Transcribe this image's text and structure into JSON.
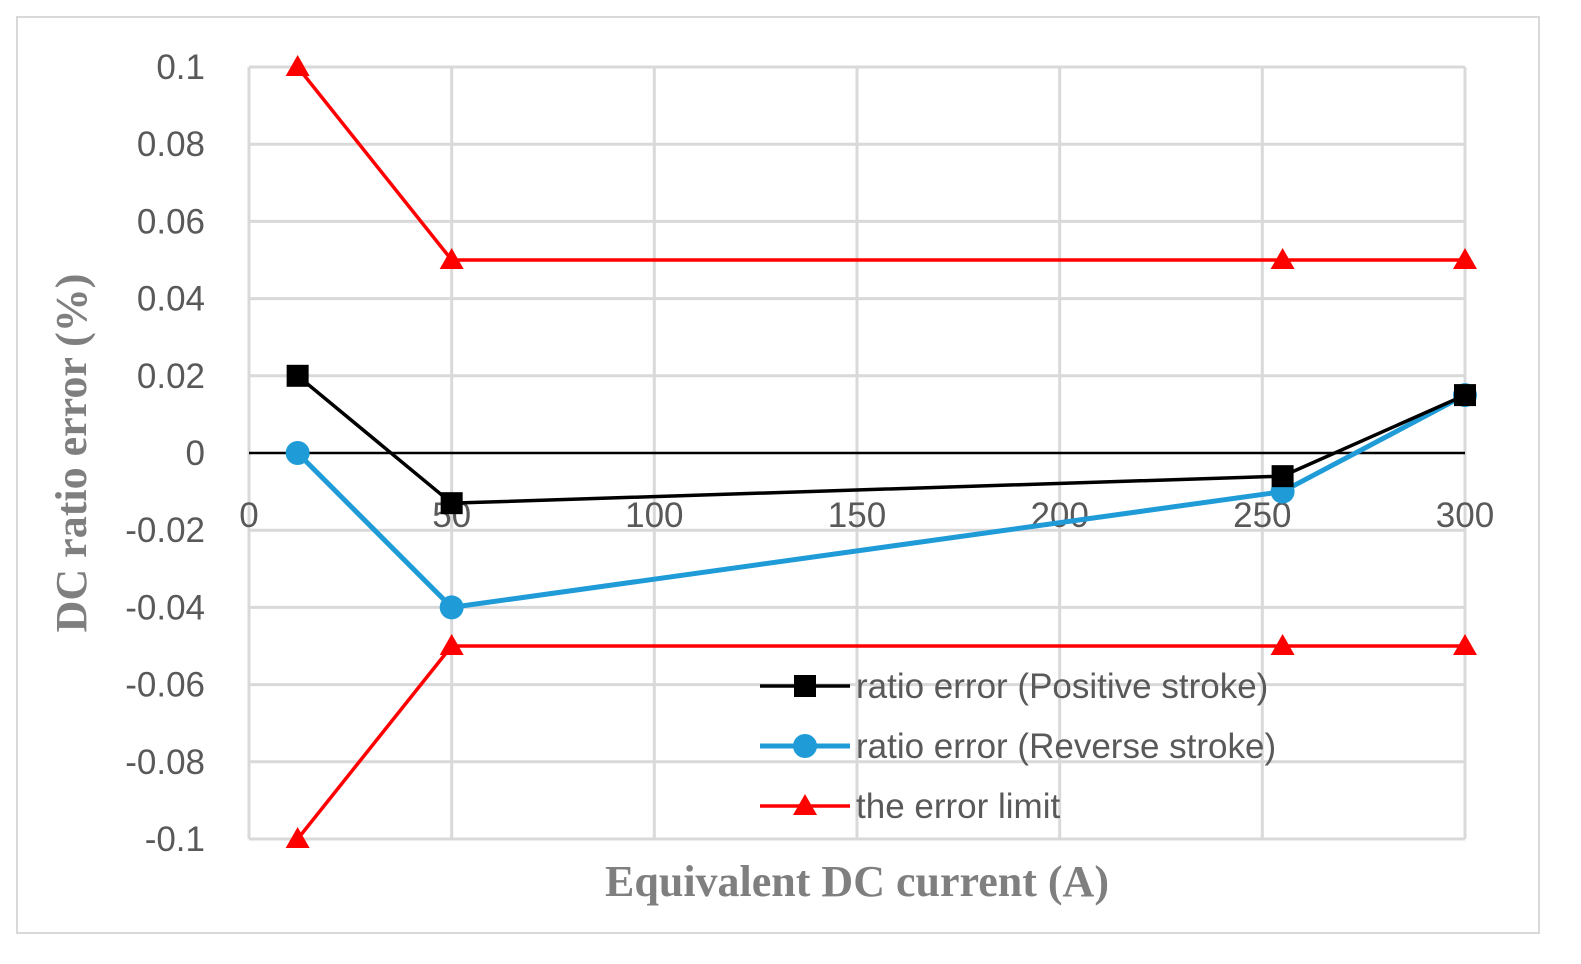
{
  "chart_data": {
    "type": "line",
    "title": "",
    "xlabel": "Equivalent DC current (A)",
    "ylabel": "DC ratio error (%)",
    "xlim": [
      0,
      300
    ],
    "ylim": [
      -0.1,
      0.1
    ],
    "x_ticks": [
      "0",
      "50",
      "100",
      "150",
      "200",
      "250",
      "300"
    ],
    "y_ticks": [
      "0.1",
      "0.08",
      "0.06",
      "0.04",
      "0.02",
      "0",
      "-0.02",
      "-0.04",
      "-0.06",
      "-0.08",
      "-0.1"
    ],
    "grid": true,
    "legend_position": "bottom-right",
    "series": [
      {
        "name": "ratio error (Positive stroke)",
        "color": "#000000",
        "marker": "square",
        "x": [
          12,
          50,
          255,
          300
        ],
        "y": [
          0.02,
          -0.013,
          -0.006,
          0.015
        ]
      },
      {
        "name": "ratio error (Reverse  stroke)",
        "color": "#1f9bd7",
        "marker": "circle",
        "x": [
          12,
          50,
          255,
          300
        ],
        "y": [
          0,
          -0.04,
          -0.01,
          0.015
        ]
      },
      {
        "name": "the error limit",
        "color": "#ff0000",
        "marker": "triangle",
        "x": [
          12,
          50,
          255,
          300
        ],
        "y": [
          0.1,
          0.05,
          0.05,
          0.05
        ]
      },
      {
        "name": "",
        "color": "#ff0000",
        "marker": "triangle",
        "x": [
          12,
          50,
          255,
          300
        ],
        "y": [
          -0.1,
          -0.05,
          -0.05,
          -0.05
        ]
      }
    ]
  }
}
